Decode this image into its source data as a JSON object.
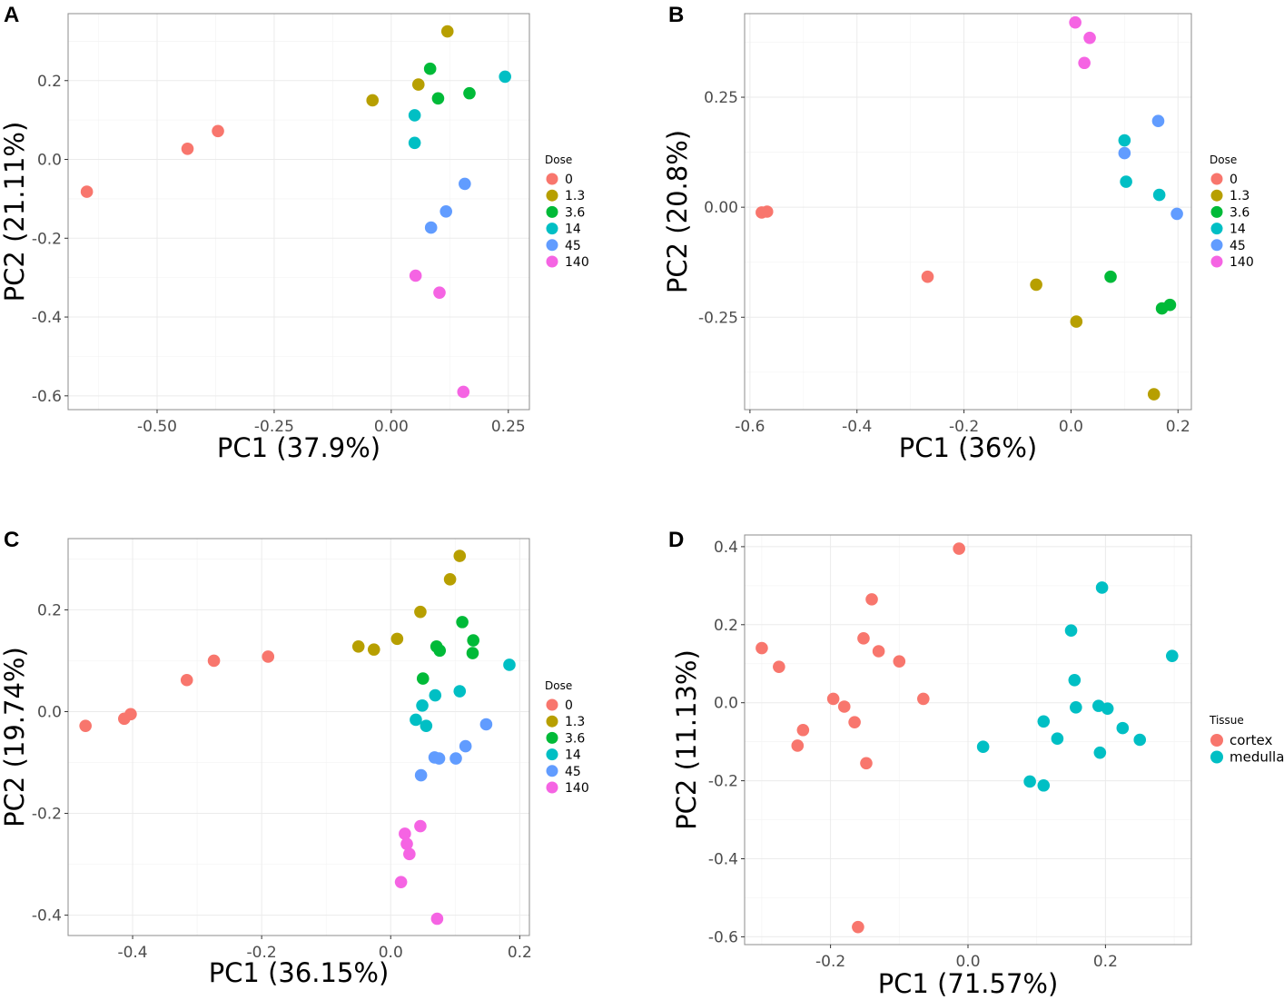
{
  "chart_data": [
    {
      "panel": "A",
      "type": "scatter",
      "xlabel": "PC1 (37.9%)",
      "ylabel": "PC2 (21.11%)",
      "xlim": [
        -0.69,
        0.295
      ],
      "ylim": [
        -0.635,
        0.37
      ],
      "xticks": [
        -0.5,
        -0.25,
        0.0,
        0.25
      ],
      "xtick_labels": [
        "-0.50",
        "-0.25",
        "0.00",
        "0.25"
      ],
      "yticks": [
        0.2,
        0.0,
        -0.2,
        -0.4,
        -0.6
      ],
      "ytick_labels": [
        "0.2",
        "0.0",
        "-0.2",
        "-0.4",
        "-0.6"
      ],
      "legend": {
        "title": "Dose",
        "position": "right"
      },
      "series": [
        {
          "name": "0",
          "color": "#F8766D",
          "points": [
            [
              -0.65,
              -0.082
            ],
            [
              -0.435,
              0.027
            ],
            [
              -0.37,
              0.072
            ]
          ]
        },
        {
          "name": "1.3",
          "color": "#B79F00",
          "points": [
            [
              0.12,
              0.325
            ],
            [
              0.058,
              0.19
            ],
            [
              -0.04,
              0.15
            ]
          ]
        },
        {
          "name": "3.6",
          "color": "#00BA38",
          "points": [
            [
              0.083,
              0.23
            ],
            [
              0.1,
              0.155
            ],
            [
              0.167,
              0.168
            ]
          ]
        },
        {
          "name": "14",
          "color": "#00BFC4",
          "points": [
            [
              0.243,
              0.21
            ],
            [
              0.05,
              0.112
            ],
            [
              0.05,
              0.042
            ]
          ]
        },
        {
          "name": "45",
          "color": "#619CFF",
          "points": [
            [
              0.157,
              -0.062
            ],
            [
              0.117,
              -0.132
            ],
            [
              0.085,
              -0.173
            ]
          ]
        },
        {
          "name": "140",
          "color": "#F564E3",
          "points": [
            [
              0.052,
              -0.295
            ],
            [
              0.103,
              -0.338
            ],
            [
              0.154,
              -0.59
            ]
          ]
        }
      ]
    },
    {
      "panel": "B",
      "type": "scatter",
      "xlabel": "PC1 (36%)",
      "ylabel": "PC2 (20.8%)",
      "xlim": [
        -0.61,
        0.225
      ],
      "ylim": [
        -0.46,
        0.44
      ],
      "xticks": [
        -0.6,
        -0.4,
        -0.2,
        0.0,
        0.2
      ],
      "xtick_labels": [
        "-0.6",
        "-0.4",
        "-0.2",
        "0.0",
        "0.2"
      ],
      "yticks": [
        0.25,
        0.0,
        -0.25
      ],
      "ytick_labels": [
        "0.25",
        "0.00",
        "-0.25"
      ],
      "legend": {
        "title": "Dose",
        "position": "right"
      },
      "series": [
        {
          "name": "0",
          "color": "#F8766D",
          "points": [
            [
              -0.578,
              -0.012
            ],
            [
              -0.568,
              -0.01
            ],
            [
              -0.268,
              -0.158
            ]
          ]
        },
        {
          "name": "1.3",
          "color": "#B79F00",
          "points": [
            [
              -0.065,
              -0.176
            ],
            [
              0.01,
              -0.26
            ],
            [
              0.155,
              -0.425
            ]
          ]
        },
        {
          "name": "3.6",
          "color": "#00BA38",
          "points": [
            [
              0.074,
              -0.158
            ],
            [
              0.17,
              -0.23
            ],
            [
              0.185,
              -0.222
            ]
          ]
        },
        {
          "name": "14",
          "color": "#00BFC4",
          "points": [
            [
              0.1,
              0.152
            ],
            [
              0.103,
              0.058
            ],
            [
              0.165,
              0.028
            ]
          ]
        },
        {
          "name": "45",
          "color": "#619CFF",
          "points": [
            [
              0.163,
              0.196
            ],
            [
              0.1,
              0.123
            ],
            [
              0.198,
              -0.015
            ]
          ]
        },
        {
          "name": "140",
          "color": "#F564E3",
          "points": [
            [
              0.008,
              0.42
            ],
            [
              0.035,
              0.385
            ],
            [
              0.025,
              0.328
            ]
          ]
        }
      ]
    },
    {
      "panel": "C",
      "type": "scatter",
      "xlabel": "PC1 (36.15%)",
      "ylabel": "PC2 (19.74%)",
      "xlim": [
        -0.5,
        0.215
      ],
      "ylim": [
        -0.44,
        0.34
      ],
      "xticks": [
        -0.4,
        -0.2,
        0.0,
        0.2
      ],
      "xtick_labels": [
        "-0.4",
        "-0.2",
        "0.0",
        "0.2"
      ],
      "yticks": [
        0.2,
        0.0,
        -0.2,
        -0.4
      ],
      "ytick_labels": [
        "0.2",
        "0.0",
        "-0.2",
        "-0.4"
      ],
      "legend": {
        "title": "Dose",
        "position": "right"
      },
      "series": [
        {
          "name": "0",
          "color": "#F8766D",
          "points": [
            [
              -0.473,
              -0.028
            ],
            [
              -0.413,
              -0.014
            ],
            [
              -0.403,
              -0.005
            ],
            [
              -0.316,
              0.062
            ],
            [
              -0.274,
              0.1
            ],
            [
              -0.19,
              0.108
            ]
          ]
        },
        {
          "name": "1.3",
          "color": "#B79F00",
          "points": [
            [
              0.107,
              0.306
            ],
            [
              0.092,
              0.26
            ],
            [
              0.046,
              0.196
            ],
            [
              -0.05,
              0.128
            ],
            [
              -0.026,
              0.122
            ],
            [
              0.01,
              0.143
            ]
          ]
        },
        {
          "name": "3.6",
          "color": "#00BA38",
          "points": [
            [
              0.111,
              0.176
            ],
            [
              0.128,
              0.14
            ],
            [
              0.127,
              0.115
            ],
            [
              0.071,
              0.128
            ],
            [
              0.076,
              0.12
            ],
            [
              0.05,
              0.065
            ]
          ]
        },
        {
          "name": "14",
          "color": "#00BFC4",
          "points": [
            [
              0.184,
              0.092
            ],
            [
              0.107,
              0.04
            ],
            [
              0.069,
              0.032
            ],
            [
              0.049,
              0.012
            ],
            [
              0.039,
              -0.016
            ],
            [
              0.055,
              -0.028
            ]
          ]
        },
        {
          "name": "45",
          "color": "#619CFF",
          "points": [
            [
              0.148,
              -0.025
            ],
            [
              0.116,
              -0.068
            ],
            [
              0.101,
              -0.092
            ],
            [
              0.068,
              -0.09
            ],
            [
              0.075,
              -0.092
            ],
            [
              0.047,
              -0.125
            ]
          ]
        },
        {
          "name": "140",
          "color": "#F564E3",
          "points": [
            [
              0.046,
              -0.225
            ],
            [
              0.022,
              -0.24
            ],
            [
              0.025,
              -0.26
            ],
            [
              0.029,
              -0.28
            ],
            [
              0.016,
              -0.335
            ],
            [
              0.072,
              -0.407
            ]
          ]
        }
      ]
    },
    {
      "panel": "D",
      "type": "scatter",
      "xlabel": "PC1 (71.57%)",
      "ylabel": "PC2 (11.13%)",
      "xlim": [
        -0.325,
        0.325
      ],
      "ylim": [
        -0.62,
        0.43
      ],
      "xticks": [
        -0.2,
        0.0,
        0.2
      ],
      "xtick_labels": [
        "-0.2",
        "0.0",
        "0.2"
      ],
      "yticks": [
        0.4,
        0.2,
        0.0,
        -0.2,
        -0.4,
        -0.6
      ],
      "ytick_labels": [
        "0.4",
        "0.2",
        "0.0",
        "-0.2",
        "-0.4",
        "-0.6"
      ],
      "legend": {
        "title": "Tissue",
        "position": "right"
      },
      "series": [
        {
          "name": "cortex",
          "color": "#F8766D",
          "points": [
            [
              -0.013,
              0.395
            ],
            [
              -0.14,
              0.265
            ],
            [
              -0.152,
              0.165
            ],
            [
              -0.13,
              0.132
            ],
            [
              -0.1,
              0.106
            ],
            [
              -0.3,
              0.14
            ],
            [
              -0.275,
              0.092
            ],
            [
              -0.065,
              0.01
            ],
            [
              -0.196,
              0.01
            ],
            [
              -0.18,
              -0.01
            ],
            [
              -0.165,
              -0.05
            ],
            [
              -0.24,
              -0.07
            ],
            [
              -0.248,
              -0.11
            ],
            [
              -0.148,
              -0.155
            ],
            [
              -0.16,
              -0.575
            ]
          ]
        },
        {
          "name": "medulla",
          "color": "#00BFC4",
          "points": [
            [
              0.195,
              0.295
            ],
            [
              0.15,
              0.185
            ],
            [
              0.155,
              0.058
            ],
            [
              0.297,
              0.12
            ],
            [
              0.157,
              -0.012
            ],
            [
              0.19,
              -0.008
            ],
            [
              0.203,
              -0.015
            ],
            [
              0.11,
              -0.048
            ],
            [
              0.225,
              -0.065
            ],
            [
              0.25,
              -0.095
            ],
            [
              0.13,
              -0.092
            ],
            [
              0.192,
              -0.128
            ],
            [
              0.022,
              -0.113
            ],
            [
              0.09,
              -0.202
            ],
            [
              0.11,
              -0.212
            ]
          ]
        }
      ]
    }
  ]
}
